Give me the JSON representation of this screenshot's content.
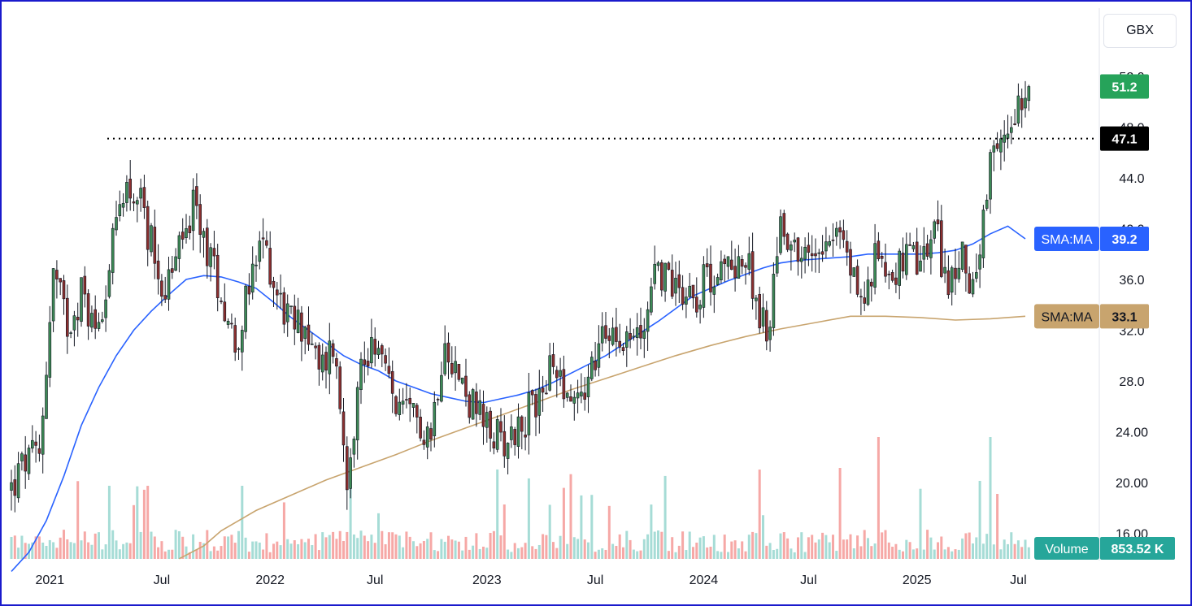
{
  "currency_label": "GBX",
  "chart_data": {
    "type": "candlestick",
    "interval": "weekly",
    "x_tick_labels": [
      "2021",
      "Jul",
      "2022",
      "Jul",
      "2023",
      "Jul",
      "2024",
      "Jul",
      "2025",
      "Jul"
    ],
    "y_tick_labels": [
      "16.00",
      "20.00",
      "24.00",
      "28.0",
      "32.0",
      "36.0",
      "40.0",
      "44.0",
      "48.0",
      "52.0"
    ],
    "y_range": [
      14.0,
      54.0
    ],
    "grid": false,
    "last_price": 51.2,
    "horizontal_line": 47.1,
    "indicators": [
      {
        "name": "SMA:MA",
        "value": "39.2",
        "color": "#2962ff"
      },
      {
        "name": "SMA:MA",
        "value": "33.1",
        "color": "#c8a46e"
      }
    ],
    "volume": {
      "label": "Volume",
      "value": "853.52 K"
    },
    "price_path_weekly_close": [
      [
        0,
        19.5
      ],
      [
        4,
        21.6
      ],
      [
        8,
        22.0
      ],
      [
        12,
        36.5
      ],
      [
        16,
        32.5
      ],
      [
        20,
        35.0
      ],
      [
        24,
        32.0
      ],
      [
        28,
        36.8
      ],
      [
        32,
        43.5
      ],
      [
        36,
        42.5
      ],
      [
        40,
        39.0
      ],
      [
        44,
        35.0
      ],
      [
        48,
        38.5
      ],
      [
        52,
        41.5
      ],
      [
        56,
        38.5
      ],
      [
        60,
        35.0
      ],
      [
        64,
        31.0
      ],
      [
        68,
        35.0
      ],
      [
        72,
        39.0
      ],
      [
        76,
        35.0
      ],
      [
        80,
        32.5
      ],
      [
        84,
        32.5
      ],
      [
        88,
        28.5
      ],
      [
        92,
        31.0
      ],
      [
        96,
        21.0
      ],
      [
        100,
        29.0
      ],
      [
        104,
        31.5
      ],
      [
        108,
        27.5
      ],
      [
        112,
        25.0
      ],
      [
        116,
        25.0
      ],
      [
        120,
        24.0
      ],
      [
        124,
        32.0
      ],
      [
        128,
        28.0
      ],
      [
        132,
        26.0
      ],
      [
        136,
        24.0
      ],
      [
        140,
        23.5
      ],
      [
        144,
        24.0
      ],
      [
        148,
        25.5
      ],
      [
        152,
        27.5
      ],
      [
        156,
        29.5
      ],
      [
        160,
        26.5
      ],
      [
        164,
        27.5
      ],
      [
        168,
        30.5
      ],
      [
        172,
        32.5
      ],
      [
        176,
        31.5
      ],
      [
        180,
        31.5
      ],
      [
        184,
        37.0
      ],
      [
        188,
        36.0
      ],
      [
        192,
        35.5
      ],
      [
        196,
        35.0
      ],
      [
        200,
        36.5
      ],
      [
        204,
        36.5
      ],
      [
        208,
        38.0
      ],
      [
        212,
        36.0
      ],
      [
        216,
        31.0
      ],
      [
        220,
        41.0
      ],
      [
        224,
        38.5
      ],
      [
        228,
        37.5
      ],
      [
        232,
        39.5
      ],
      [
        236,
        40.0
      ],
      [
        240,
        37.0
      ],
      [
        244,
        34.0
      ],
      [
        248,
        38.5
      ],
      [
        252,
        36.5
      ],
      [
        256,
        37.5
      ],
      [
        260,
        37.0
      ],
      [
        264,
        40.0
      ],
      [
        268,
        35.5
      ],
      [
        272,
        37.5
      ],
      [
        276,
        35.5
      ],
      [
        280,
        44.5
      ],
      [
        284,
        47.0
      ],
      [
        288,
        50.5
      ],
      [
        291,
        51.2
      ]
    ],
    "sma_fast_path": [
      [
        0,
        13.0
      ],
      [
        5,
        14.5
      ],
      [
        10,
        17.0
      ],
      [
        15,
        20.5
      ],
      [
        20,
        24.5
      ],
      [
        25,
        27.5
      ],
      [
        30,
        30.0
      ],
      [
        35,
        32.0
      ],
      [
        40,
        33.5
      ],
      [
        45,
        34.8
      ],
      [
        50,
        36.0
      ],
      [
        55,
        36.3
      ],
      [
        60,
        36.2
      ],
      [
        65,
        35.8
      ],
      [
        70,
        35.3
      ],
      [
        75,
        34.2
      ],
      [
        80,
        33.0
      ],
      [
        85,
        32.0
      ],
      [
        90,
        31.0
      ],
      [
        95,
        30.0
      ],
      [
        100,
        29.3
      ],
      [
        105,
        28.8
      ],
      [
        110,
        28.0
      ],
      [
        115,
        27.5
      ],
      [
        120,
        27.0
      ],
      [
        125,
        26.7
      ],
      [
        130,
        26.4
      ],
      [
        135,
        26.3
      ],
      [
        140,
        26.6
      ],
      [
        145,
        26.9
      ],
      [
        150,
        27.3
      ],
      [
        155,
        27.9
      ],
      [
        160,
        28.6
      ],
      [
        165,
        29.3
      ],
      [
        170,
        30.0
      ],
      [
        175,
        30.9
      ],
      [
        180,
        31.8
      ],
      [
        185,
        32.7
      ],
      [
        190,
        33.7
      ],
      [
        195,
        34.7
      ],
      [
        200,
        35.3
      ],
      [
        205,
        35.9
      ],
      [
        210,
        36.4
      ],
      [
        215,
        36.9
      ],
      [
        220,
        37.3
      ],
      [
        225,
        37.5
      ],
      [
        230,
        37.6
      ],
      [
        235,
        37.7
      ],
      [
        240,
        37.8
      ],
      [
        245,
        38.0
      ],
      [
        250,
        38.0
      ],
      [
        255,
        38.0
      ],
      [
        260,
        38.0
      ],
      [
        265,
        38.1
      ],
      [
        270,
        38.3
      ],
      [
        275,
        38.8
      ],
      [
        280,
        39.6
      ],
      [
        285,
        40.2
      ],
      [
        290,
        39.2
      ]
    ],
    "sma_slow_path": [
      [
        48,
        14.0
      ],
      [
        55,
        15.0
      ],
      [
        60,
        16.2
      ],
      [
        70,
        17.8
      ],
      [
        80,
        19.0
      ],
      [
        90,
        20.2
      ],
      [
        100,
        21.2
      ],
      [
        110,
        22.2
      ],
      [
        120,
        23.3
      ],
      [
        130,
        24.3
      ],
      [
        140,
        25.3
      ],
      [
        150,
        26.3
      ],
      [
        160,
        27.3
      ],
      [
        170,
        28.2
      ],
      [
        180,
        29.1
      ],
      [
        190,
        30.0
      ],
      [
        200,
        30.8
      ],
      [
        210,
        31.5
      ],
      [
        220,
        32.1
      ],
      [
        230,
        32.6
      ],
      [
        240,
        33.1
      ],
      [
        250,
        33.1
      ],
      [
        260,
        33.0
      ],
      [
        270,
        32.8
      ],
      [
        280,
        32.9
      ],
      [
        290,
        33.1
      ]
    ]
  }
}
